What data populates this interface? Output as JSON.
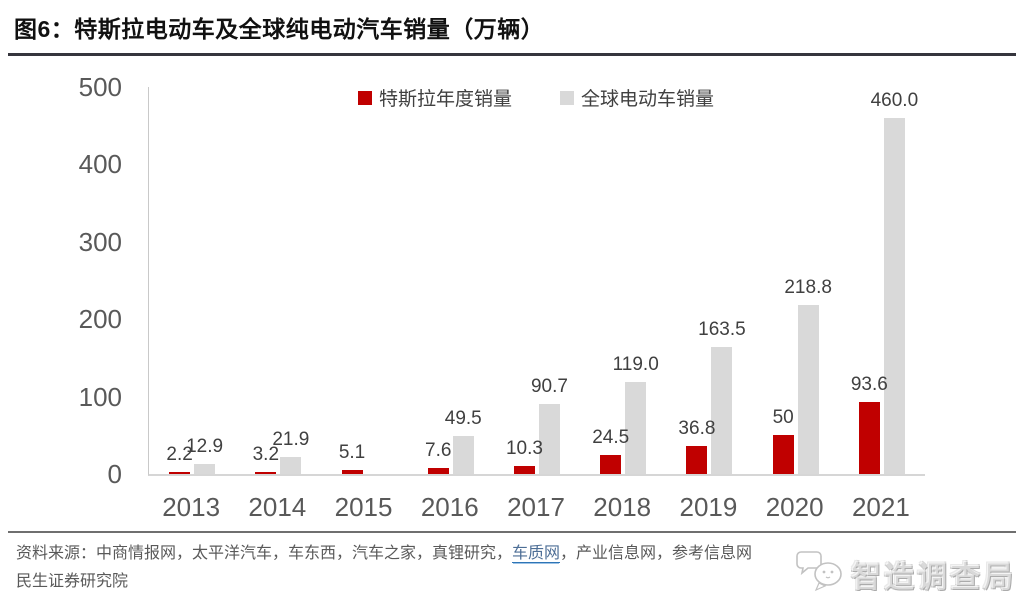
{
  "title": "图6：特斯拉电动车及全球纯电动汽车销量（万辆）",
  "chart_data": {
    "type": "bar",
    "title": "特斯拉电动车及全球纯电动汽车销量（万辆）",
    "unit": "万辆",
    "categories": [
      "2013",
      "2014",
      "2015",
      "2016",
      "2017",
      "2018",
      "2019",
      "2020",
      "2021"
    ],
    "series": [
      {
        "name": "特斯拉年度销量",
        "color": "#c00000",
        "values": [
          2.2,
          3.2,
          5.1,
          7.6,
          10.3,
          24.5,
          36.8,
          50,
          93.6
        ],
        "labels": [
          "2.2",
          "3.2",
          "5.1",
          "7.6",
          "10.3",
          "24.5",
          "36.8",
          "50",
          "93.6"
        ]
      },
      {
        "name": "全球电动车销量",
        "color": "#d9d9d9",
        "values": [
          12.9,
          21.9,
          null,
          49.5,
          90.7,
          119.0,
          163.5,
          218.8,
          460.0
        ],
        "labels": [
          "12.9",
          "21.9",
          "",
          "49.5",
          "90.7",
          "119.0",
          "163.5",
          "218.8",
          "460.0"
        ]
      }
    ],
    "ylim": [
      0,
      500
    ],
    "yticks": [
      0,
      100,
      200,
      300,
      400,
      500
    ],
    "grid": false,
    "legend_position": "top-center"
  },
  "footer": {
    "source_prefix": "资料来源：中商情报网，太平洋汽车，车东西，汽车之家，真锂研究，",
    "source_link": "车质网",
    "source_suffix": "，产业信息网，参考信息网",
    "institute": "民生证券研究院"
  },
  "watermark": {
    "text": "智造调查局"
  },
  "colors": {
    "tesla_bar": "#c00000",
    "global_bar": "#d9d9d9",
    "data_label": "#404040",
    "axis_text": "#595959",
    "link": "#2e75b6",
    "title_rule": "#35353d"
  }
}
